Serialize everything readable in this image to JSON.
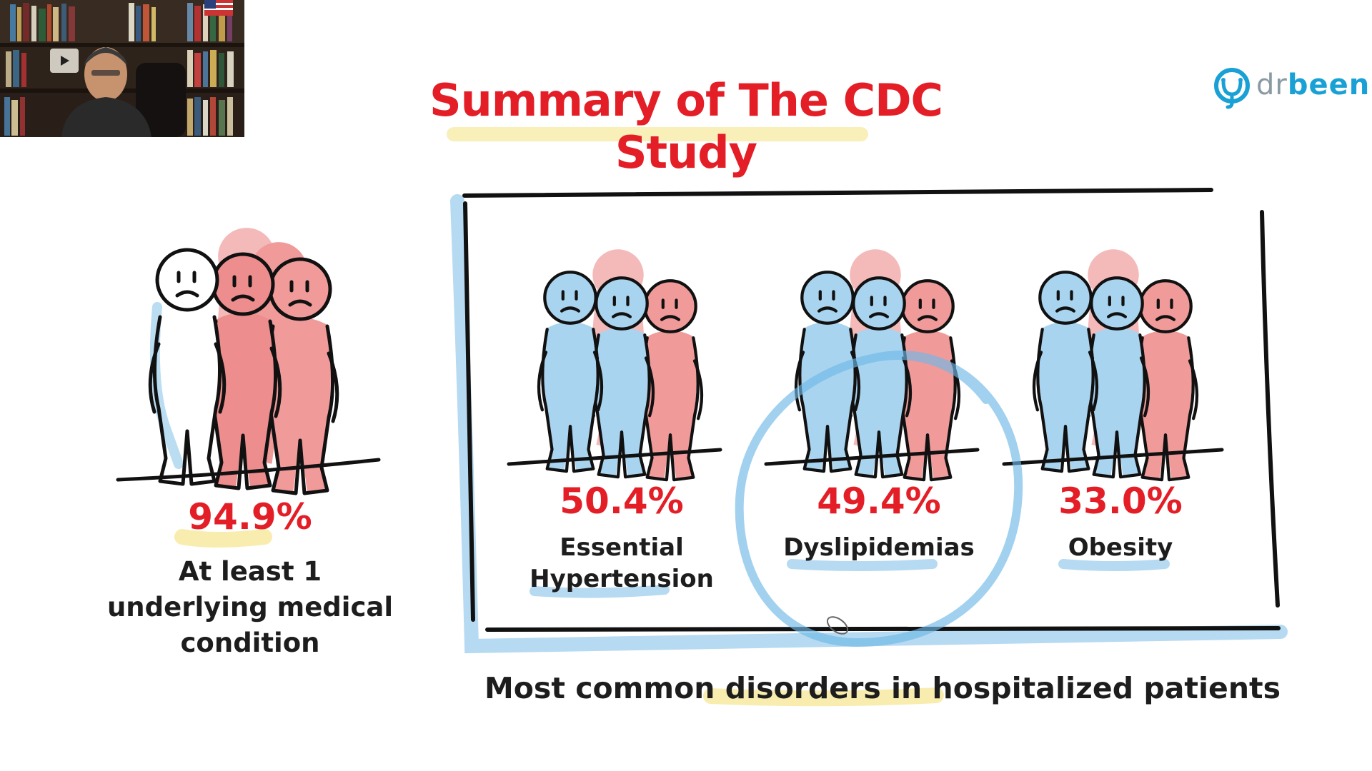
{
  "slide": {
    "title": "Summary of The CDC Study",
    "logo": {
      "prefix": "dr",
      "suffix": "been",
      "icon": "stethoscope-icon"
    },
    "overall": {
      "percent": "94.9%",
      "label_lines": [
        "At least 1",
        "underlying medical",
        "condition"
      ]
    },
    "disorders": [
      {
        "percent": "50.4%",
        "label_lines": [
          "Essential",
          "Hypertension"
        ]
      },
      {
        "percent": "49.4%",
        "label_lines": [
          "Dyslipidemias"
        ]
      },
      {
        "percent": "33.0%",
        "label_lines": [
          "Obesity"
        ]
      }
    ],
    "footer": "Most common disorders in hospitalized patients",
    "colors": {
      "accent_red": "#e41e26",
      "sketch_blue": "#a9d4ef",
      "sketch_red": "#f09a9a",
      "highlight_yellow": "#f7eaa0",
      "logo_blue": "#19a1d6"
    }
  },
  "webcam": {
    "description_icon": "presenter-video-icon"
  }
}
